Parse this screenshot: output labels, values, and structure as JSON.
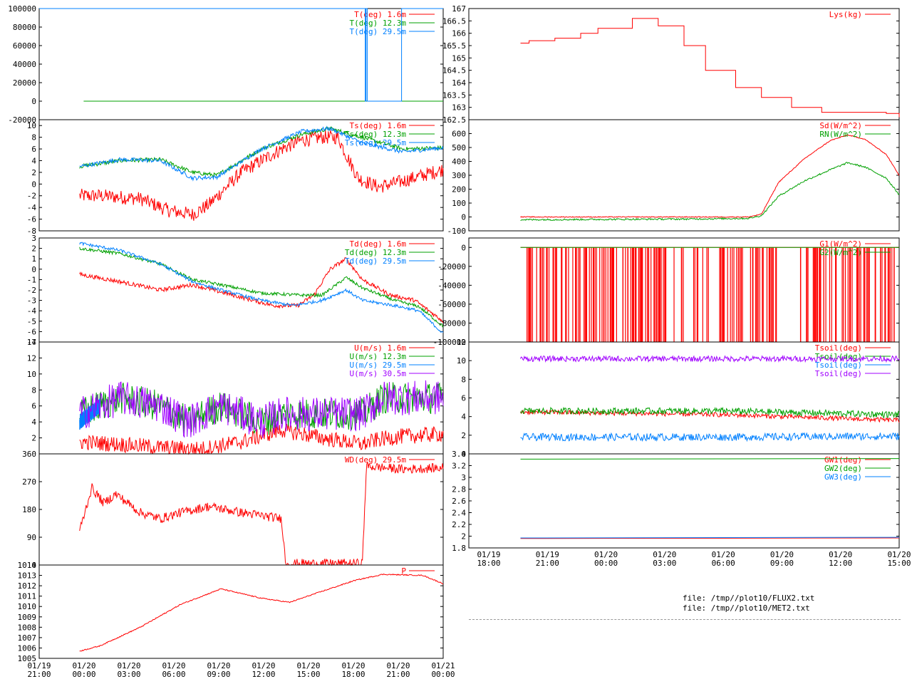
{
  "colors": {
    "red": "#ff0000",
    "green": "#00a000",
    "blue": "#0080ff",
    "magenta": "#a000ff",
    "axis": "#000000",
    "grid": "#a0a0a0"
  },
  "left_xaxis": {
    "ticks": [
      "01/19\n21:00",
      "01/20\n00:00",
      "01/20\n03:00",
      "01/20\n06:00",
      "01/20\n09:00",
      "01/20\n12:00",
      "01/20\n15:00",
      "01/20\n18:00",
      "01/20\n21:00",
      "01/21\n00:00"
    ]
  },
  "right_xaxis": {
    "ticks": [
      "01/19\n18:00",
      "01/19\n21:00",
      "01/20\n00:00",
      "01/20\n03:00",
      "01/20\n06:00",
      "01/20\n09:00",
      "01/20\n12:00",
      "01/20\n15:00"
    ]
  },
  "files": [
    "file: /tmp//plot10/FLUX2.txt",
    "file: /tmp//plot10/MET2.txt"
  ],
  "chart_data": [
    {
      "type": "line",
      "side": "left",
      "ylim": [
        -20000,
        100000
      ],
      "yticks": [
        "100000",
        "80000",
        "60000",
        "40000",
        "20000",
        "0",
        "-20000"
      ],
      "series": [
        {
          "name": "T(deg)  1.6m",
          "color": "red",
          "x": [
            0.94,
            0.94
          ],
          "y": [
            0,
            0
          ]
        },
        {
          "name": "T(deg) 12.3m",
          "color": "green",
          "x": [
            0.11,
            1.0
          ],
          "y": [
            0,
            0
          ]
        },
        {
          "name": "T(deg) 29.5m",
          "color": "blue",
          "x": [
            0.0,
            0.807,
            0.807,
            0.809,
            0.809,
            0.812,
            0.812,
            0.897,
            0.897,
            1.0
          ],
          "y": [
            100000,
            100000,
            0,
            0,
            100000,
            100000,
            0,
            0,
            100000,
            100000
          ]
        }
      ]
    },
    {
      "type": "line",
      "side": "left",
      "ylim": [
        -8,
        11
      ],
      "yticks": [
        "10",
        "8",
        "6",
        "4",
        "2",
        "0",
        "-2",
        "-4",
        "-6",
        "-8"
      ],
      "series": [
        {
          "name": "Ts(deg)  1.6m",
          "color": "red",
          "noise": 1.2,
          "x": [
            0.1,
            0.15,
            0.25,
            0.32,
            0.38,
            0.42,
            0.5,
            0.6,
            0.65,
            0.7,
            0.74,
            0.76,
            0.79,
            0.84,
            0.9,
            1.0
          ],
          "y": [
            -2,
            -2,
            -2.5,
            -4.5,
            -5.2,
            -3.5,
            2,
            6,
            7.5,
            8,
            8,
            5,
            1,
            -0.5,
            0.5,
            2.5
          ]
        },
        {
          "name": "Ts(deg) 12.3m",
          "color": "green",
          "noise": 0.35,
          "x": [
            0.1,
            0.2,
            0.3,
            0.38,
            0.44,
            0.55,
            0.65,
            0.72,
            0.8,
            0.9,
            1.0
          ],
          "y": [
            3,
            4,
            4.2,
            2,
            1.5,
            6,
            8.5,
            9.5,
            8,
            6,
            6.2
          ]
        },
        {
          "name": "Ts(deg) 29.5m",
          "color": "blue",
          "noise": 0.35,
          "x": [
            0.1,
            0.2,
            0.3,
            0.38,
            0.44,
            0.55,
            0.65,
            0.72,
            0.8,
            0.9,
            1.0
          ],
          "y": [
            3,
            4.2,
            4,
            1,
            1.2,
            6,
            9,
            9.5,
            7,
            5.5,
            6.2
          ]
        }
      ]
    },
    {
      "type": "line",
      "side": "left",
      "ylim": [
        -7,
        3
      ],
      "yticks": [
        "3",
        "2",
        "1",
        "0",
        "-1",
        "-2",
        "-3",
        "-4",
        "-5",
        "-6",
        "-7"
      ],
      "series": [
        {
          "name": "Td(deg)  1.6m",
          "color": "red",
          "noise": 0.2,
          "x": [
            0.1,
            0.2,
            0.3,
            0.38,
            0.48,
            0.58,
            0.64,
            0.68,
            0.72,
            0.76,
            0.8,
            0.87,
            0.93,
            1.0
          ],
          "y": [
            -0.5,
            -1.2,
            -2,
            -1.5,
            -2.5,
            -3.5,
            -3.5,
            -2.5,
            0,
            1,
            -1,
            -2.5,
            -3,
            -5
          ]
        },
        {
          "name": "Td(deg) 12.3m",
          "color": "green",
          "noise": 0.15,
          "x": [
            0.1,
            0.2,
            0.3,
            0.38,
            0.45,
            0.55,
            0.65,
            0.7,
            0.76,
            0.8,
            0.88,
            0.94,
            1.0
          ],
          "y": [
            2,
            1.5,
            0.5,
            -1,
            -1.5,
            -2.3,
            -2.5,
            -2.5,
            -0.8,
            -1.8,
            -3,
            -3.6,
            -5.5
          ]
        },
        {
          "name": "Td(deg) 29.5m",
          "color": "blue",
          "noise": 0.15,
          "x": [
            0.1,
            0.2,
            0.3,
            0.38,
            0.45,
            0.55,
            0.63,
            0.7,
            0.76,
            0.8,
            0.88,
            0.94,
            1.0
          ],
          "y": [
            2.5,
            1.8,
            0.5,
            -1.2,
            -2,
            -3,
            -3.5,
            -3,
            -2,
            -3,
            -3.5,
            -4,
            -6.2
          ]
        }
      ]
    },
    {
      "type": "line",
      "side": "left",
      "ylim": [
        0,
        14
      ],
      "yticks": [
        "14",
        "12",
        "10",
        "8",
        "6",
        "4",
        "2"
      ],
      "series": [
        {
          "name": "U(m/s)  1.6m",
          "color": "red",
          "noise": 1.0,
          "x": [
            0.1,
            0.2,
            0.3,
            0.4,
            0.5,
            0.6,
            0.7,
            0.8,
            0.84,
            0.9,
            1.0
          ],
          "y": [
            1.5,
            1.2,
            0.8,
            0.6,
            1.5,
            3,
            2,
            1.2,
            1.8,
            2.2,
            2.5
          ]
        },
        {
          "name": "U(m/s) 12.3m",
          "color": "green",
          "noise": 2.0,
          "x": [
            0.1,
            0.2,
            0.3,
            0.37,
            0.45,
            0.5,
            0.55,
            0.6,
            0.7,
            0.8,
            0.85,
            0.9,
            1.0
          ],
          "y": [
            5,
            7,
            6,
            4,
            6,
            5,
            4,
            5,
            5,
            5,
            7,
            7,
            7
          ]
        },
        {
          "name": "U(m/s) 29.5m",
          "color": "blue",
          "noise": 1.0,
          "x": [
            0.1,
            0.15
          ],
          "y": [
            4,
            6
          ]
        },
        {
          "name": "U(m/s) 30.5m",
          "color": "magenta",
          "noise": 2.2,
          "x": [
            0.1,
            0.2,
            0.3,
            0.37,
            0.45,
            0.5,
            0.55,
            0.6,
            0.7,
            0.8,
            0.85,
            0.9,
            1.0
          ],
          "y": [
            5,
            7,
            6,
            4,
            6,
            5,
            4,
            5,
            5,
            5,
            7,
            7,
            7
          ]
        }
      ]
    },
    {
      "type": "line",
      "side": "left",
      "ylim": [
        0,
        360
      ],
      "yticks": [
        "360",
        "270",
        "180",
        "90",
        "0"
      ],
      "series": [
        {
          "name": "WD(deg) 29.5m",
          "color": "red",
          "noise": 15,
          "x": [
            0.1,
            0.13,
            0.16,
            0.19,
            0.25,
            0.3,
            0.35,
            0.42,
            0.5,
            0.55,
            0.6,
            0.61,
            0.8,
            0.81,
            0.9,
            1.0
          ],
          "y": [
            110,
            250,
            200,
            230,
            170,
            150,
            170,
            190,
            170,
            160,
            150,
            5,
            5,
            320,
            310,
            315
          ]
        }
      ]
    },
    {
      "type": "line",
      "side": "left",
      "ylim": [
        1005,
        1014
      ],
      "yticks": [
        "1014",
        "1013",
        "1012",
        "1011",
        "1010",
        "1009",
        "1008",
        "1007",
        "1006",
        "1005"
      ],
      "series": [
        {
          "name": "P",
          "color": "red",
          "noise": 0.05,
          "x": [
            0.1,
            0.15,
            0.25,
            0.35,
            0.45,
            0.55,
            0.62,
            0.68,
            0.78,
            0.85,
            0.95,
            1.0
          ],
          "y": [
            1005.7,
            1006.2,
            1008,
            1010.2,
            1011.7,
            1010.8,
            1010.4,
            1011.2,
            1012.5,
            1013.1,
            1013.0,
            1012.2
          ]
        }
      ]
    },
    {
      "type": "line",
      "side": "right",
      "ylim": [
        162.5,
        167
      ],
      "yticks": [
        "167",
        "166.5",
        "166",
        "165.5",
        "165",
        "164.5",
        "164",
        "163.5",
        "163",
        "162.5"
      ],
      "series": [
        {
          "name": "Lys(kg)",
          "color": "red",
          "step": true,
          "x": [
            0.12,
            0.14,
            0.2,
            0.26,
            0.3,
            0.38,
            0.42,
            0.44,
            0.5,
            0.55,
            0.62,
            0.68,
            0.75,
            0.82,
            0.9,
            0.97,
            1.0
          ],
          "y": [
            165.6,
            165.7,
            165.8,
            166,
            166.2,
            166.6,
            166.6,
            166.3,
            165.5,
            164.5,
            163.8,
            163.4,
            163,
            162.8,
            162.8,
            162.75,
            162.6
          ]
        }
      ]
    },
    {
      "type": "line",
      "side": "right",
      "ylim": [
        -100,
        700
      ],
      "yticks": [
        "600",
        "500",
        "400",
        "300",
        "200",
        "100",
        "0",
        "-100"
      ],
      "series": [
        {
          "name": "Sd(W/m^2)",
          "color": "red",
          "noise": 3,
          "x": [
            0.12,
            0.5,
            0.65,
            0.68,
            0.72,
            0.78,
            0.84,
            0.88,
            0.92,
            0.97,
            1.0
          ],
          "y": [
            0,
            0,
            0,
            20,
            250,
            420,
            550,
            590,
            560,
            450,
            300
          ]
        },
        {
          "name": "RN(W/m^2)",
          "color": "green",
          "noise": 6,
          "x": [
            0.12,
            0.5,
            0.65,
            0.68,
            0.72,
            0.78,
            0.84,
            0.88,
            0.92,
            0.97,
            1.0
          ],
          "y": [
            -20,
            -15,
            -10,
            10,
            150,
            260,
            340,
            390,
            360,
            280,
            160
          ]
        }
      ]
    },
    {
      "type": "line",
      "side": "right",
      "ylim": [
        -100000,
        10000
      ],
      "yticks": [
        "0",
        "-20000",
        "-40000",
        "-60000",
        "-80000",
        "-100000"
      ],
      "spikes": {
        "color": "red",
        "ranges": [
          [
            0.125,
            0.72
          ],
          [
            0.77,
            1.0
          ]
        ],
        "count": 260
      },
      "series": [
        {
          "name": "G1(W/m^2)",
          "color": "red",
          "x": [
            0.12,
            1.0
          ],
          "y": [
            0,
            0
          ]
        },
        {
          "name": "G2(W/m^2)",
          "color": "green",
          "x": [
            0.12,
            1.0
          ],
          "y": [
            0,
            0
          ]
        }
      ]
    },
    {
      "type": "line",
      "side": "right",
      "ylim": [
        0,
        12
      ],
      "yticks": [
        "12",
        "10",
        "8",
        "6",
        "4",
        "2",
        "0"
      ],
      "series": [
        {
          "name": "Tsoil(deg)",
          "color": "red",
          "noise": 0.25,
          "x": [
            0.12,
            0.6,
            1.0
          ],
          "y": [
            4.5,
            4.2,
            3.6
          ]
        },
        {
          "name": "Tsoil(deg)",
          "color": "green",
          "noise": 0.35,
          "x": [
            0.12,
            0.6,
            1.0
          ],
          "y": [
            4.6,
            4.6,
            4.2
          ]
        },
        {
          "name": "Tsoil(deg)",
          "color": "blue",
          "noise": 0.4,
          "x": [
            0.12,
            0.6,
            1.0
          ],
          "y": [
            1.8,
            1.8,
            1.9
          ]
        },
        {
          "name": "Tsoil(deg)",
          "color": "magenta",
          "noise": 0.3,
          "x": [
            0.12,
            0.6,
            1.0
          ],
          "y": [
            10.2,
            10.2,
            10.2
          ]
        }
      ]
    },
    {
      "type": "line",
      "side": "right",
      "ylim": [
        1.8,
        3.4
      ],
      "yticks": [
        "3.4",
        "3.2",
        "3",
        "2.8",
        "2.6",
        "2.4",
        "2.2",
        "2",
        "1.8"
      ],
      "series": [
        {
          "name": "GW1(deg)",
          "color": "red",
          "x": [
            0.12,
            1.0
          ],
          "y": [
            1.96,
            1.97
          ]
        },
        {
          "name": "GW2(deg)",
          "color": "green",
          "x": [
            0.12,
            1.0
          ],
          "y": [
            3.31,
            3.32
          ]
        },
        {
          "name": "GW3(deg)",
          "color": "blue",
          "x": [
            0.12,
            1.0
          ],
          "y": [
            1.97,
            1.98
          ]
        }
      ]
    }
  ]
}
